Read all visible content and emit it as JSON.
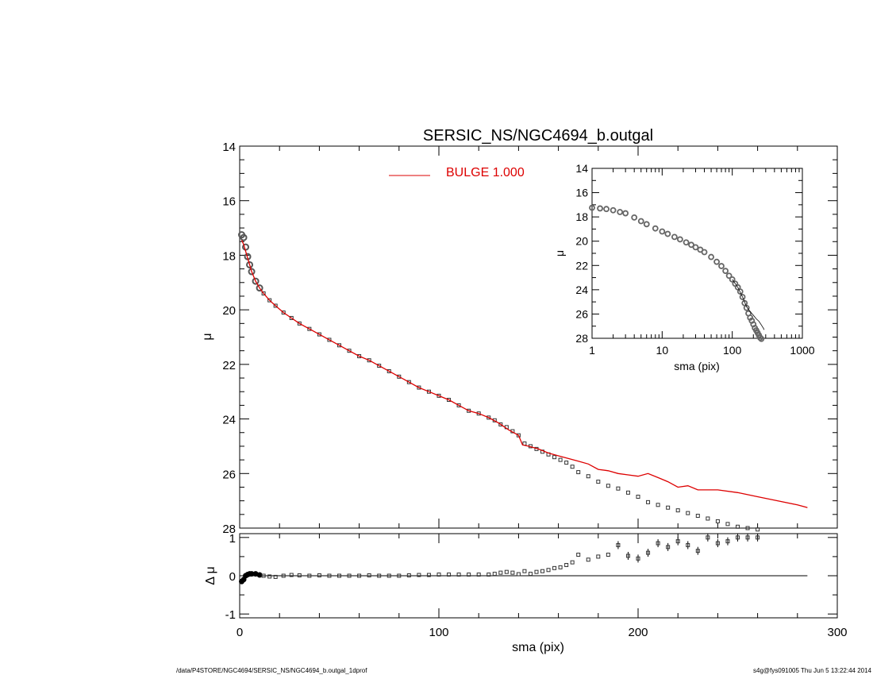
{
  "chart_data": [
    {
      "type": "scatter",
      "title": "SERSIC_NS/NGC4694_b.outgal",
      "xlabel": "",
      "ylabel": "μ",
      "xlim": [
        0,
        300
      ],
      "ylim": [
        28,
        14
      ],
      "y_inverted": true,
      "yticks": [
        "14",
        "16",
        "18",
        "20",
        "22",
        "24",
        "26",
        "28"
      ],
      "legend": {
        "placement": "top-center",
        "label": "BULGE  1.000",
        "color": "#dd0000"
      },
      "series": [
        {
          "name": "",
          "style": "open-square-markers",
          "color": "#000000",
          "x": [
            1,
            2,
            3,
            4,
            5,
            6,
            8,
            10,
            12,
            15,
            18,
            22,
            26,
            30,
            35,
            40,
            45,
            50,
            55,
            60,
            65,
            70,
            75,
            80,
            85,
            90,
            95,
            100,
            105,
            110,
            115,
            120,
            125,
            128,
            131,
            134,
            137,
            140,
            143,
            146,
            149,
            152,
            155,
            158,
            161,
            164,
            167,
            170,
            175,
            180,
            185,
            190,
            195,
            200,
            205,
            210,
            215,
            220,
            225,
            230,
            235,
            240,
            245,
            250,
            255,
            260
          ],
          "y": [
            17.25,
            17.35,
            17.7,
            18.05,
            18.35,
            18.6,
            18.95,
            19.2,
            19.4,
            19.65,
            19.85,
            20.1,
            20.3,
            20.5,
            20.7,
            20.9,
            21.1,
            21.3,
            21.5,
            21.7,
            21.85,
            22.05,
            22.25,
            22.45,
            22.65,
            22.85,
            23.0,
            23.15,
            23.3,
            23.5,
            23.7,
            23.8,
            23.95,
            24.05,
            24.2,
            24.3,
            24.45,
            24.6,
            24.9,
            25.0,
            25.1,
            25.2,
            25.3,
            25.4,
            25.5,
            25.6,
            25.75,
            25.95,
            26.1,
            26.3,
            26.45,
            26.55,
            26.7,
            26.85,
            27.05,
            27.15,
            27.25,
            27.35,
            27.45,
            27.55,
            27.65,
            27.75,
            27.85,
            27.95,
            28.0,
            28.05
          ]
        },
        {
          "name": "BULGE  1.000",
          "style": "line",
          "color": "#dd0000",
          "x": [
            1,
            2,
            3,
            4,
            5,
            6,
            8,
            10,
            12,
            15,
            18,
            22,
            26,
            30,
            35,
            40,
            45,
            50,
            55,
            60,
            65,
            70,
            75,
            80,
            85,
            90,
            95,
            100,
            105,
            110,
            115,
            120,
            125,
            130,
            135,
            140,
            142,
            145,
            150,
            155,
            160,
            165,
            170,
            175,
            180,
            185,
            190,
            195,
            200,
            205,
            210,
            215,
            220,
            225,
            230,
            235,
            240,
            250,
            260,
            270,
            280,
            285
          ],
          "y": [
            17.45,
            17.6,
            17.85,
            18.1,
            18.35,
            18.6,
            18.95,
            19.2,
            19.4,
            19.65,
            19.85,
            20.1,
            20.3,
            20.5,
            20.7,
            20.9,
            21.1,
            21.3,
            21.5,
            21.7,
            21.85,
            22.05,
            22.25,
            22.45,
            22.65,
            22.85,
            23.0,
            23.15,
            23.3,
            23.5,
            23.7,
            23.8,
            23.95,
            24.15,
            24.4,
            24.6,
            24.95,
            25.0,
            25.1,
            25.25,
            25.35,
            25.45,
            25.55,
            25.65,
            25.85,
            25.9,
            26.0,
            26.05,
            26.1,
            26.0,
            26.15,
            26.3,
            26.5,
            26.45,
            26.6,
            26.6,
            26.6,
            26.7,
            26.85,
            27.0,
            27.15,
            27.25
          ]
        }
      ]
    },
    {
      "type": "scatter",
      "title": "",
      "xlabel": "sma (pix)",
      "ylabel": "Δ μ",
      "xlim": [
        0,
        300
      ],
      "ylim": [
        -1.1,
        1.1
      ],
      "yticks": [
        "-1",
        "0",
        "1"
      ],
      "xticks": [
        "0",
        "100",
        "200",
        "300"
      ],
      "reference_line": 0,
      "series": [
        {
          "name": "",
          "style": "open-square-markers-with-error-bars",
          "color": "#000000",
          "x": [
            1,
            2,
            3,
            4,
            5,
            6,
            8,
            10,
            12,
            15,
            18,
            22,
            26,
            30,
            35,
            40,
            45,
            50,
            55,
            60,
            65,
            70,
            75,
            80,
            85,
            90,
            95,
            100,
            105,
            110,
            115,
            120,
            125,
            128,
            131,
            134,
            137,
            140,
            143,
            146,
            149,
            152,
            155,
            158,
            161,
            164,
            167,
            170,
            175,
            180,
            185,
            190,
            195,
            200,
            205,
            210,
            215,
            220,
            225,
            230,
            235,
            240,
            245,
            250,
            255,
            260
          ],
          "y": [
            -0.15,
            -0.1,
            0.0,
            0.03,
            0.05,
            0.05,
            0.05,
            0.02,
            0.0,
            -0.02,
            -0.03,
            0.0,
            0.02,
            0.01,
            0.0,
            0.01,
            0.0,
            0.0,
            0.0,
            0.0,
            0.01,
            0.0,
            0.0,
            0.0,
            0.01,
            0.02,
            0.02,
            0.03,
            0.03,
            0.03,
            0.03,
            0.03,
            0.03,
            0.05,
            0.08,
            0.1,
            0.08,
            0.04,
            0.12,
            0.05,
            0.1,
            0.12,
            0.15,
            0.2,
            0.22,
            0.28,
            0.35,
            0.55,
            0.42,
            0.5,
            0.55,
            0.8,
            0.52,
            0.45,
            0.6,
            0.85,
            0.75,
            0.9,
            0.8,
            0.65,
            1.0,
            0.85,
            0.9,
            1.0,
            1.0,
            1.0
          ]
        }
      ]
    },
    {
      "type": "scatter",
      "title": "",
      "xlabel": "sma (pix)",
      "ylabel": "μ",
      "xscale": "log",
      "xlim": [
        1,
        1000
      ],
      "ylim": [
        28,
        14
      ],
      "y_inverted": true,
      "xticks": [
        "1",
        "10",
        "100",
        "1000"
      ],
      "yticks": [
        "14",
        "16",
        "18",
        "20",
        "22",
        "24",
        "26",
        "28"
      ],
      "series": [
        {
          "name": "",
          "style": "open-circle-markers",
          "color": "#000000",
          "x": [
            1,
            1.3,
            1.6,
            2,
            2.5,
            3,
            4,
            5,
            6,
            8,
            10,
            12,
            15,
            18,
            22,
            26,
            30,
            35,
            40,
            50,
            60,
            70,
            80,
            90,
            100,
            110,
            120,
            130,
            140,
            150,
            160,
            170,
            180,
            190,
            200,
            210,
            220,
            230,
            240,
            250,
            260
          ],
          "y": [
            17.25,
            17.3,
            17.35,
            17.45,
            17.6,
            17.7,
            18.05,
            18.35,
            18.6,
            18.95,
            19.2,
            19.4,
            19.65,
            19.85,
            20.1,
            20.3,
            20.5,
            20.7,
            20.9,
            21.3,
            21.7,
            22.05,
            22.45,
            22.85,
            23.15,
            23.5,
            23.8,
            24.15,
            24.6,
            25.1,
            25.5,
            25.95,
            26.3,
            26.55,
            26.85,
            27.15,
            27.35,
            27.55,
            27.75,
            27.95,
            28.05
          ]
        },
        {
          "name": "",
          "style": "thin-line",
          "color": "#000000",
          "x": [
            100,
            120,
            140,
            160,
            180,
            200,
            220,
            240,
            260,
            280,
            285
          ],
          "y": [
            23.15,
            23.8,
            24.6,
            25.4,
            25.8,
            26.1,
            26.4,
            26.6,
            26.9,
            27.2,
            27.3
          ]
        }
      ]
    }
  ],
  "footer": {
    "left": "/data/P4STORE/NGC4694/SERSIC_NS/NGC4694_b.outgal_1dprof",
    "right": "s4g@fys091005  Thu Jun  5 13:22:44 2014"
  }
}
